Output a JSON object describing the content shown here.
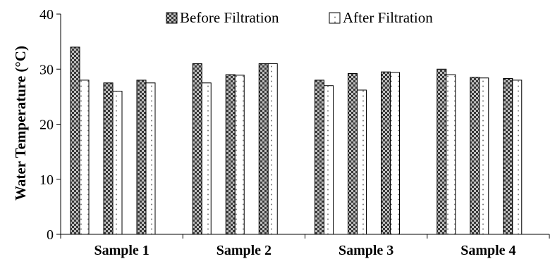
{
  "chart_data": {
    "type": "bar",
    "title": "",
    "xlabel": "",
    "ylabel": "Water Temperature (°C)",
    "ylim": [
      0,
      40
    ],
    "yticks": [
      0,
      10,
      20,
      30,
      40
    ],
    "grid": false,
    "legend_position": "top",
    "categories": [
      "Sample 1",
      "Sample 2",
      "Sample 3",
      "Sample 4"
    ],
    "bars_per_category": 3,
    "series": [
      {
        "name": "Before Filtration",
        "color": "#3a3a3a",
        "pattern": "checker",
        "values": [
          [
            34,
            27.5,
            28
          ],
          [
            31,
            29,
            31
          ],
          [
            28,
            29.2,
            29.5
          ],
          [
            30,
            28.5,
            28.3
          ]
        ]
      },
      {
        "name": "After Filtration",
        "color": "#ffffff",
        "pattern": "dotted",
        "values": [
          [
            28,
            26,
            27.5
          ],
          [
            27.5,
            28.9,
            31
          ],
          [
            27,
            26.2,
            29.4
          ],
          [
            29,
            28.4,
            28
          ]
        ]
      }
    ]
  }
}
